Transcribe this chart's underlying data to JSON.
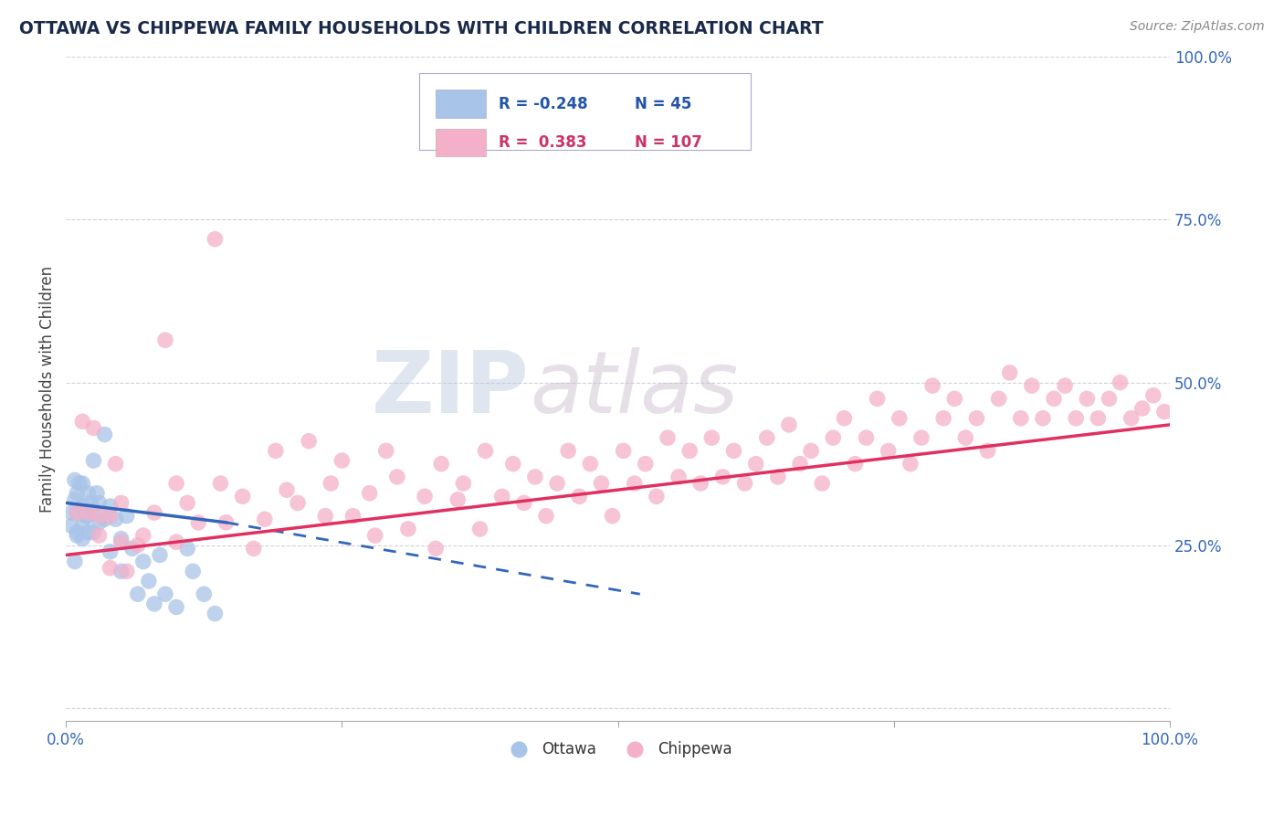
{
  "title": "OTTAWA VS CHIPPEWA FAMILY HOUSEHOLDS WITH CHILDREN CORRELATION CHART",
  "source": "Source: ZipAtlas.com",
  "ylabel": "Family Households with Children",
  "xlim": [
    0.0,
    1.0
  ],
  "ylim": [
    -0.02,
    0.6
  ],
  "ottawa_color": "#a8c4e8",
  "chippewa_color": "#f4b0c8",
  "ottawa_line_color": "#3366bb",
  "chippewa_line_color": "#e03060",
  "grid_color": "#ccccdd",
  "background_color": "#ffffff",
  "legend_R_ottawa": "-0.248",
  "legend_N_ottawa": "45",
  "legend_R_chippewa": "0.383",
  "legend_N_chippewa": "107",
  "watermark_zip": "ZIP",
  "watermark_atlas": "atlas",
  "ytick_right": [
    0.0,
    0.25,
    0.5,
    0.75,
    1.0
  ],
  "ytick_right_labels": [
    "",
    "25.0%",
    "50.0%",
    "75.0%",
    "100.0%"
  ],
  "ottawa_points": [
    [
      0.005,
      0.3
    ],
    [
      0.005,
      0.28
    ],
    [
      0.008,
      0.32
    ],
    [
      0.008,
      0.35
    ],
    [
      0.01,
      0.3
    ],
    [
      0.01,
      0.27
    ],
    [
      0.01,
      0.33
    ],
    [
      0.015,
      0.28
    ],
    [
      0.015,
      0.31
    ],
    [
      0.015,
      0.345
    ],
    [
      0.015,
      0.26
    ],
    [
      0.02,
      0.295
    ],
    [
      0.02,
      0.33
    ],
    [
      0.02,
      0.27
    ],
    [
      0.025,
      0.38
    ],
    [
      0.025,
      0.305
    ],
    [
      0.025,
      0.27
    ],
    [
      0.03,
      0.315
    ],
    [
      0.03,
      0.285
    ],
    [
      0.035,
      0.42
    ],
    [
      0.035,
      0.29
    ],
    [
      0.04,
      0.31
    ],
    [
      0.04,
      0.24
    ],
    [
      0.045,
      0.29
    ],
    [
      0.05,
      0.26
    ],
    [
      0.05,
      0.21
    ],
    [
      0.055,
      0.295
    ],
    [
      0.06,
      0.245
    ],
    [
      0.065,
      0.175
    ],
    [
      0.07,
      0.225
    ],
    [
      0.075,
      0.195
    ],
    [
      0.08,
      0.16
    ],
    [
      0.085,
      0.235
    ],
    [
      0.09,
      0.175
    ],
    [
      0.1,
      0.155
    ],
    [
      0.11,
      0.245
    ],
    [
      0.115,
      0.21
    ],
    [
      0.125,
      0.175
    ],
    [
      0.135,
      0.145
    ],
    [
      0.01,
      0.265
    ],
    [
      0.008,
      0.225
    ],
    [
      0.012,
      0.345
    ],
    [
      0.018,
      0.295
    ],
    [
      0.022,
      0.315
    ],
    [
      0.028,
      0.33
    ]
  ],
  "chippewa_points": [
    [
      0.01,
      0.3
    ],
    [
      0.015,
      0.44
    ],
    [
      0.02,
      0.3
    ],
    [
      0.025,
      0.43
    ],
    [
      0.03,
      0.265
    ],
    [
      0.04,
      0.295
    ],
    [
      0.04,
      0.215
    ],
    [
      0.045,
      0.375
    ],
    [
      0.05,
      0.255
    ],
    [
      0.055,
      0.21
    ],
    [
      0.065,
      0.25
    ],
    [
      0.08,
      0.3
    ],
    [
      0.09,
      0.565
    ],
    [
      0.1,
      0.345
    ],
    [
      0.1,
      0.255
    ],
    [
      0.11,
      0.315
    ],
    [
      0.12,
      0.285
    ],
    [
      0.135,
      0.72
    ],
    [
      0.14,
      0.345
    ],
    [
      0.145,
      0.285
    ],
    [
      0.16,
      0.325
    ],
    [
      0.17,
      0.245
    ],
    [
      0.18,
      0.29
    ],
    [
      0.19,
      0.395
    ],
    [
      0.2,
      0.335
    ],
    [
      0.21,
      0.315
    ],
    [
      0.22,
      0.41
    ],
    [
      0.235,
      0.295
    ],
    [
      0.24,
      0.345
    ],
    [
      0.25,
      0.38
    ],
    [
      0.26,
      0.295
    ],
    [
      0.275,
      0.33
    ],
    [
      0.28,
      0.265
    ],
    [
      0.29,
      0.395
    ],
    [
      0.3,
      0.355
    ],
    [
      0.31,
      0.275
    ],
    [
      0.325,
      0.325
    ],
    [
      0.335,
      0.245
    ],
    [
      0.34,
      0.375
    ],
    [
      0.355,
      0.32
    ],
    [
      0.36,
      0.345
    ],
    [
      0.375,
      0.275
    ],
    [
      0.38,
      0.395
    ],
    [
      0.395,
      0.325
    ],
    [
      0.405,
      0.375
    ],
    [
      0.415,
      0.315
    ],
    [
      0.425,
      0.355
    ],
    [
      0.435,
      0.295
    ],
    [
      0.445,
      0.345
    ],
    [
      0.455,
      0.395
    ],
    [
      0.465,
      0.325
    ],
    [
      0.475,
      0.375
    ],
    [
      0.485,
      0.345
    ],
    [
      0.495,
      0.295
    ],
    [
      0.505,
      0.395
    ],
    [
      0.515,
      0.345
    ],
    [
      0.525,
      0.375
    ],
    [
      0.535,
      0.325
    ],
    [
      0.545,
      0.415
    ],
    [
      0.555,
      0.355
    ],
    [
      0.565,
      0.395
    ],
    [
      0.575,
      0.345
    ],
    [
      0.585,
      0.415
    ],
    [
      0.595,
      0.355
    ],
    [
      0.605,
      0.395
    ],
    [
      0.615,
      0.345
    ],
    [
      0.625,
      0.375
    ],
    [
      0.635,
      0.415
    ],
    [
      0.645,
      0.355
    ],
    [
      0.655,
      0.435
    ],
    [
      0.665,
      0.375
    ],
    [
      0.675,
      0.395
    ],
    [
      0.685,
      0.345
    ],
    [
      0.695,
      0.415
    ],
    [
      0.705,
      0.445
    ],
    [
      0.715,
      0.375
    ],
    [
      0.725,
      0.415
    ],
    [
      0.735,
      0.475
    ],
    [
      0.745,
      0.395
    ],
    [
      0.755,
      0.445
    ],
    [
      0.765,
      0.375
    ],
    [
      0.775,
      0.415
    ],
    [
      0.785,
      0.495
    ],
    [
      0.795,
      0.445
    ],
    [
      0.805,
      0.475
    ],
    [
      0.815,
      0.415
    ],
    [
      0.825,
      0.445
    ],
    [
      0.835,
      0.395
    ],
    [
      0.845,
      0.475
    ],
    [
      0.855,
      0.515
    ],
    [
      0.865,
      0.445
    ],
    [
      0.875,
      0.495
    ],
    [
      0.885,
      0.445
    ],
    [
      0.895,
      0.475
    ],
    [
      0.905,
      0.495
    ],
    [
      0.915,
      0.445
    ],
    [
      0.925,
      0.475
    ],
    [
      0.935,
      0.445
    ],
    [
      0.945,
      0.475
    ],
    [
      0.955,
      0.5
    ],
    [
      0.965,
      0.445
    ],
    [
      0.975,
      0.46
    ],
    [
      0.985,
      0.48
    ],
    [
      0.995,
      0.455
    ],
    [
      0.03,
      0.295
    ],
    [
      0.05,
      0.315
    ],
    [
      0.07,
      0.265
    ]
  ],
  "ottawa_solid_line": {
    "x0": 0.0,
    "y0": 0.315,
    "x1": 0.145,
    "y1": 0.285
  },
  "ottawa_dashed_line": {
    "x0": 0.145,
    "y0": 0.285,
    "x1": 0.52,
    "y1": 0.175
  },
  "chippewa_line": {
    "x0": 0.0,
    "y0": 0.235,
    "x1": 1.0,
    "y1": 0.435
  }
}
